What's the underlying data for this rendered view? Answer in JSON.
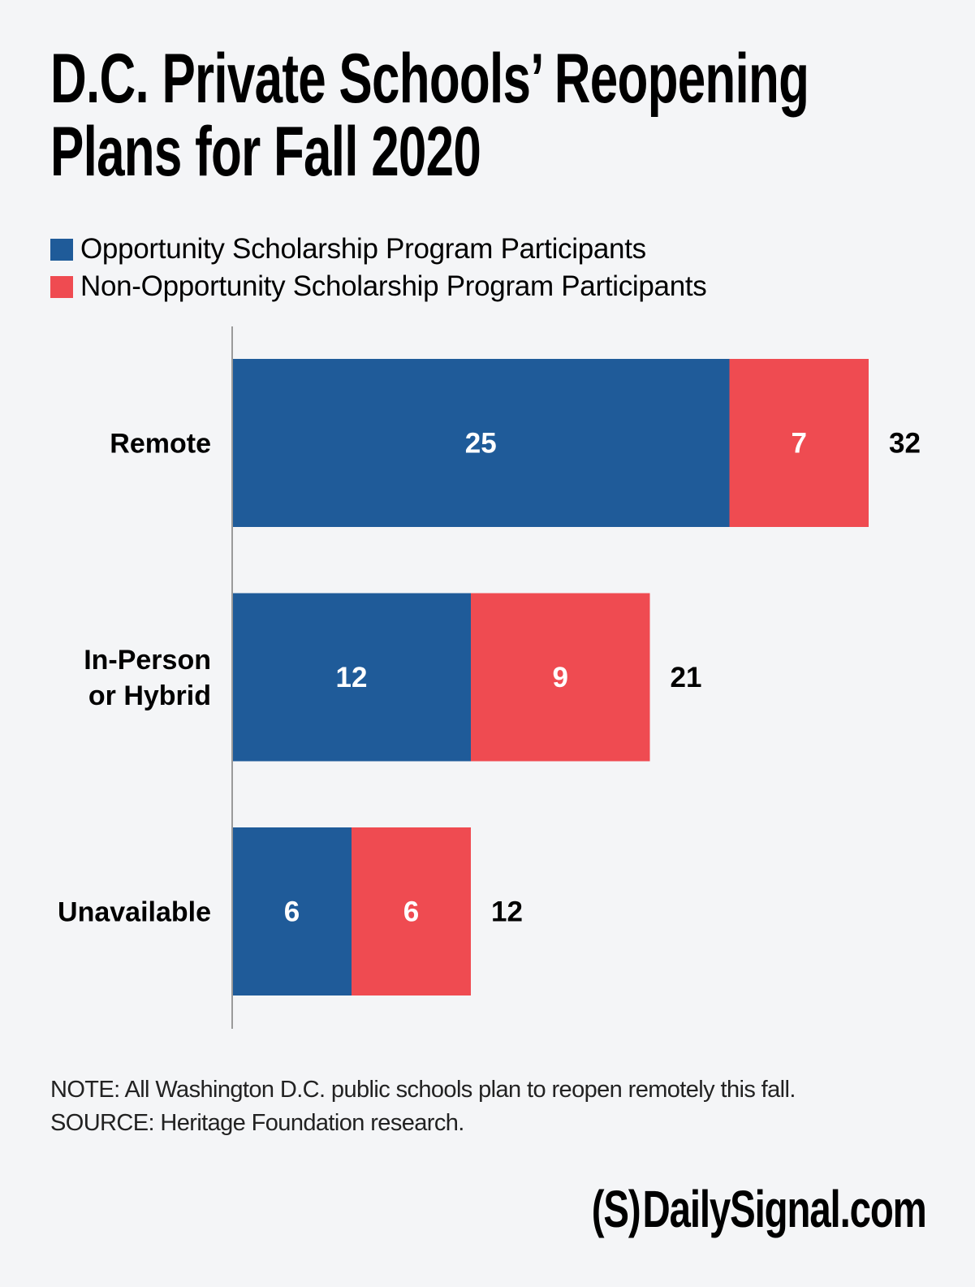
{
  "title_lines": [
    "D.C. Private Schools’ Reopening",
    "Plans for Fall 2020"
  ],
  "colors": {
    "background": "#f4f5f7",
    "opportunity": "#1f5b99",
    "non_opportunity": "#ef4b51",
    "axis": "#9a9a9a"
  },
  "legend": [
    {
      "label": "Opportunity Scholarship Program Participants",
      "color": "#1f5b99"
    },
    {
      "label": "Non-Opportunity Scholarship Program Participants",
      "color": "#ef4b51"
    }
  ],
  "notes": {
    "note": "NOTE: All Washington D.C. public schools plan to reopen remotely this fall.",
    "source": "SOURCE: Heritage Foundation research."
  },
  "logo": {
    "mark": "(S)",
    "text": "DailySignal.com"
  },
  "chart_data": {
    "type": "bar",
    "orientation": "horizontal",
    "stacked": true,
    "title": "D.C. Private Schools’ Reopening Plans for Fall 2020",
    "xlabel": "",
    "ylabel": "",
    "grid": false,
    "legend_position": "top-left",
    "xlim": [
      0,
      32
    ],
    "categories": [
      [
        "Remote"
      ],
      [
        "In-Person",
        "or Hybrid"
      ],
      [
        "Unavailable"
      ]
    ],
    "series": [
      {
        "name": "Opportunity Scholarship Program Participants",
        "values": [
          25,
          12,
          6
        ]
      },
      {
        "name": "Non-Opportunity Scholarship Program Participants",
        "values": [
          7,
          9,
          6
        ]
      }
    ],
    "totals": [
      32,
      21,
      12
    ]
  }
}
